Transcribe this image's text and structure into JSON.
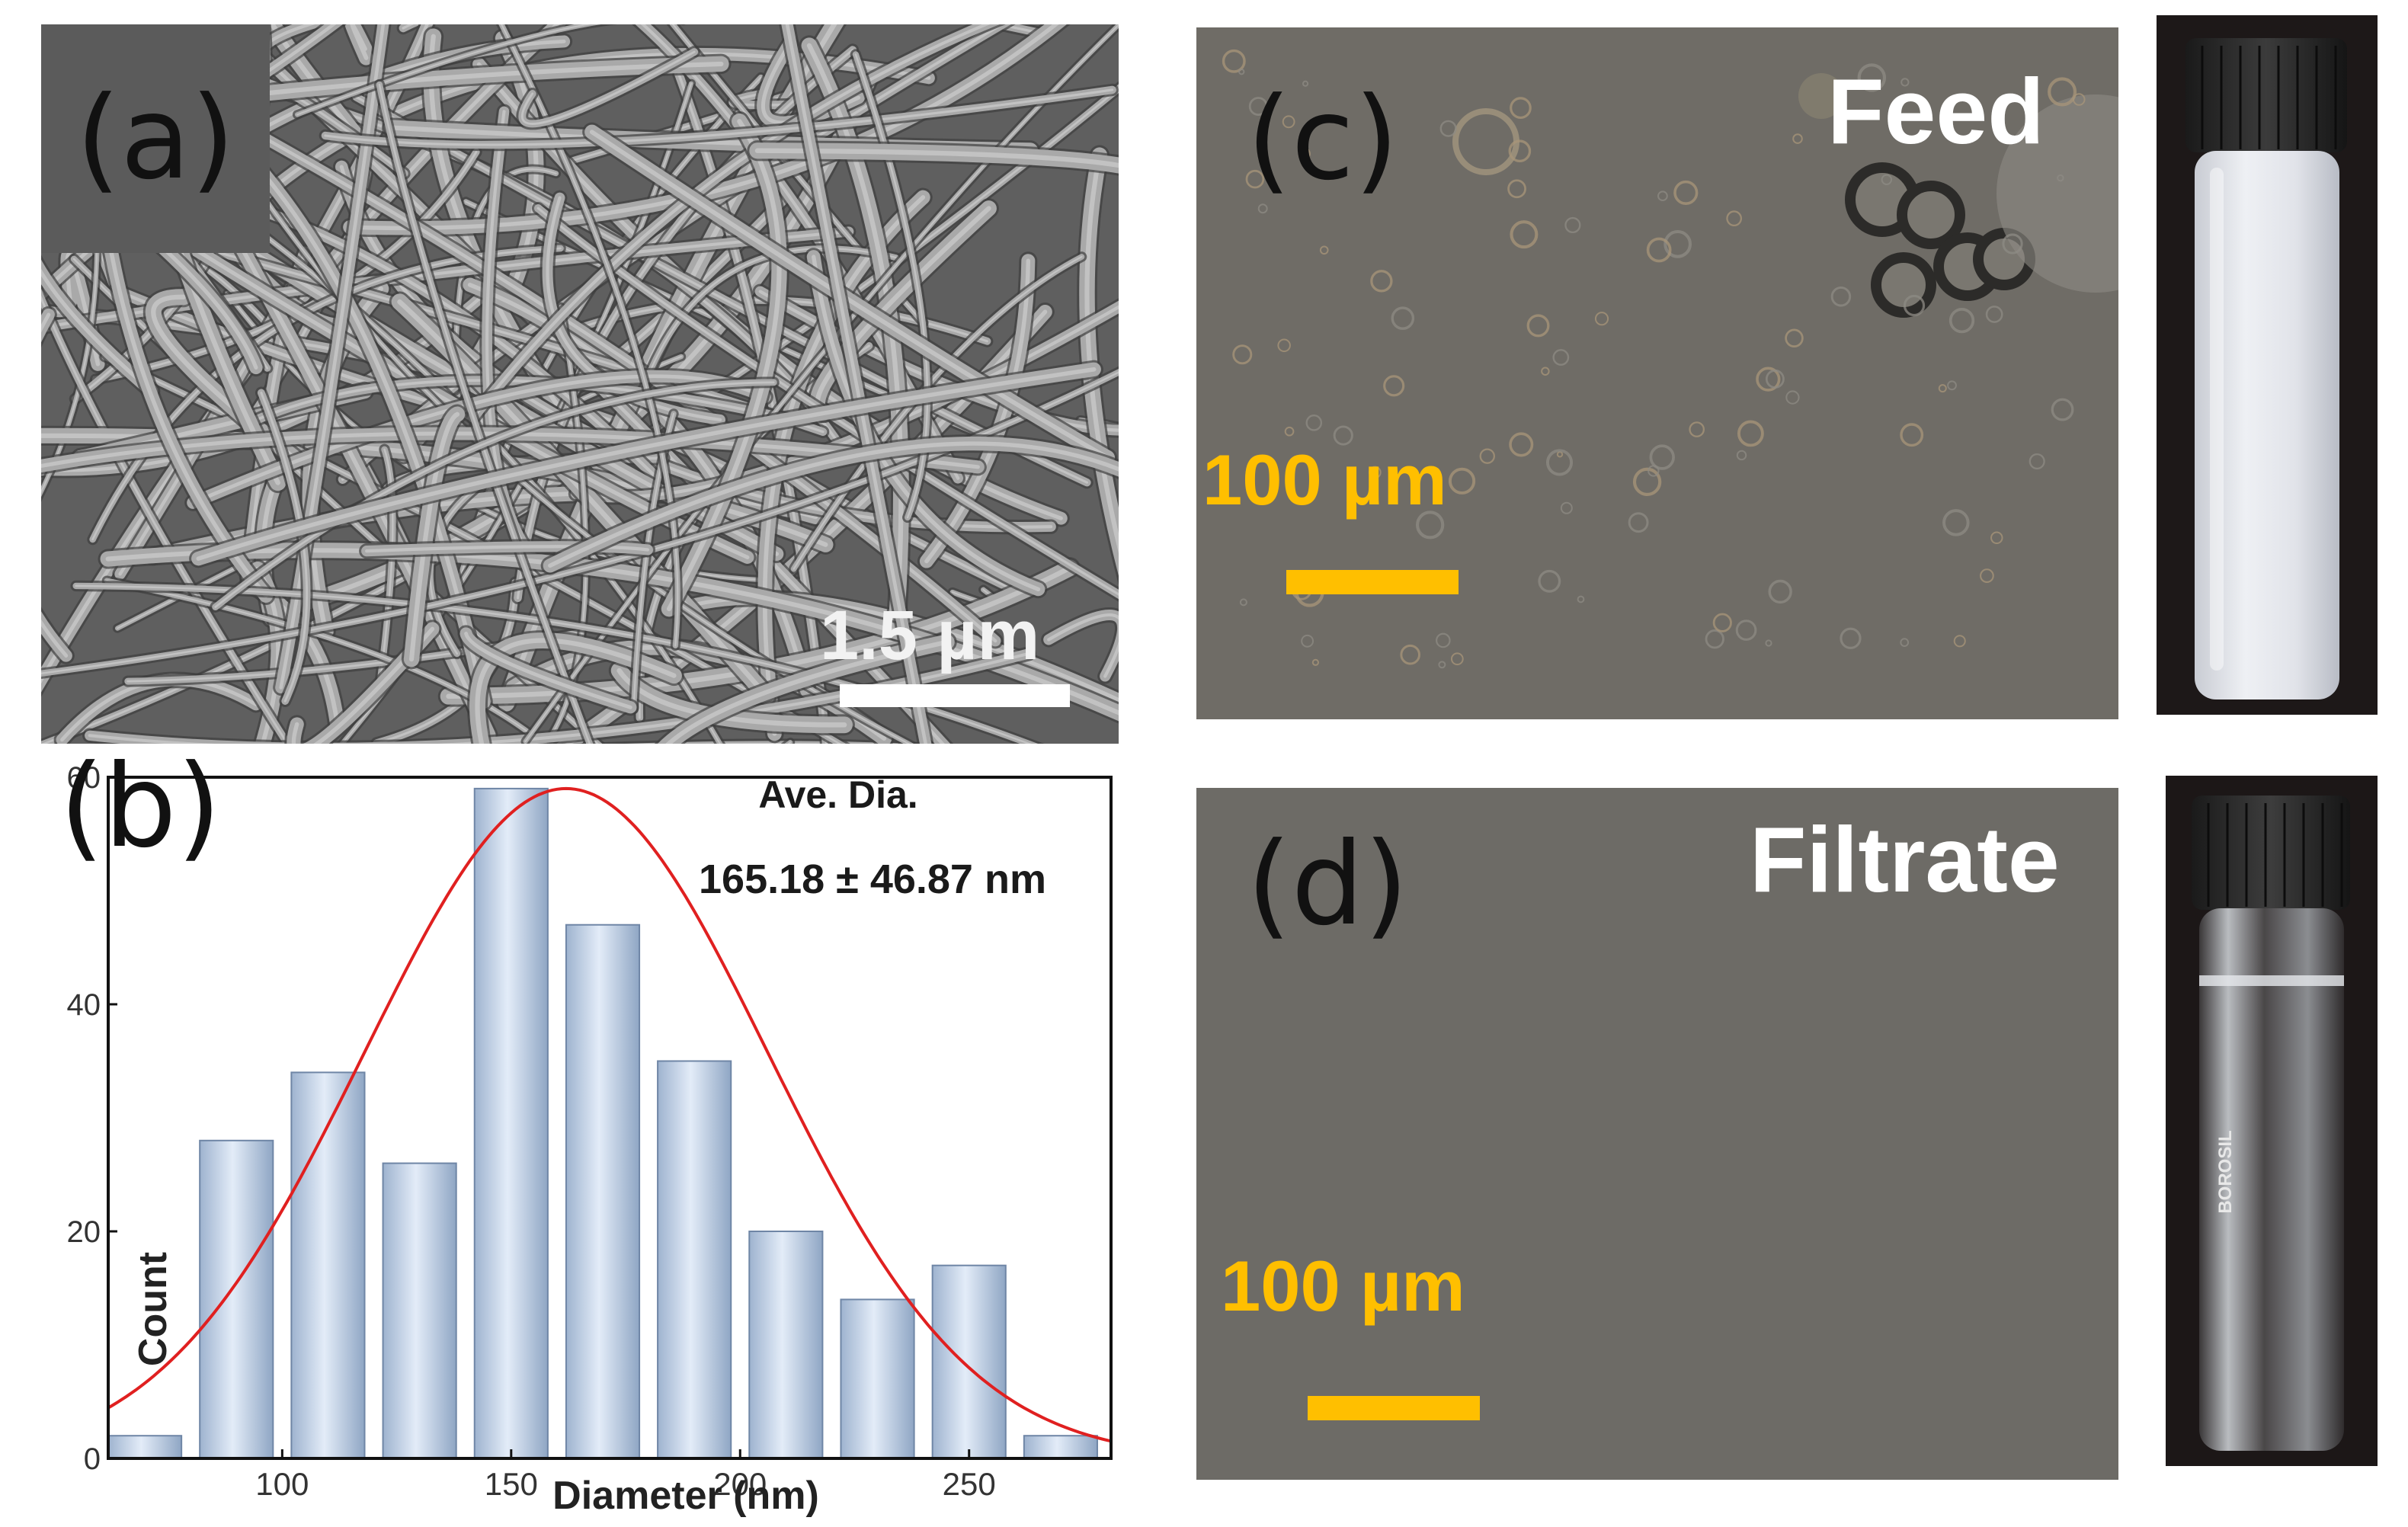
{
  "panel_a": {
    "label": "(a)",
    "scale_bar_text": "1.5 µm"
  },
  "panel_b": {
    "label": "(b)"
  },
  "panel_c": {
    "label": "(c)",
    "name": "Feed",
    "scale_bar_text": "100 µm"
  },
  "panel_d": {
    "label": "(d)",
    "name": "Filtrate",
    "scale_bar_text": "100 µm"
  },
  "vial_text": "BOROSIL",
  "colors": {
    "bar_fill_top": "#dbe6f5",
    "bar_fill_bottom": "#9eb3cf",
    "fit_curve": "#e02020",
    "scale_yellow": "#ffbf00"
  },
  "chart_data": {
    "type": "bar",
    "xlabel": "Diameter (nm)",
    "ylabel": "Count",
    "xlim": [
      62,
      281
    ],
    "ylim": [
      0,
      60
    ],
    "xticks": [
      100,
      150,
      200,
      250
    ],
    "yticks": [
      0,
      20,
      40,
      60
    ],
    "bins": [
      70,
      90,
      110,
      130,
      150,
      170,
      190,
      210,
      230,
      250,
      270
    ],
    "values": [
      2,
      28,
      34,
      26,
      59,
      47,
      35,
      20,
      14,
      17,
      2
    ],
    "annotation_line1": "Ave. Dia.",
    "annotation_line2": "165.18 ± 46.87 nm",
    "fit": {
      "type": "gaussian",
      "mean": 162,
      "sd": 44,
      "peak": 59,
      "color": "#e02020"
    }
  }
}
